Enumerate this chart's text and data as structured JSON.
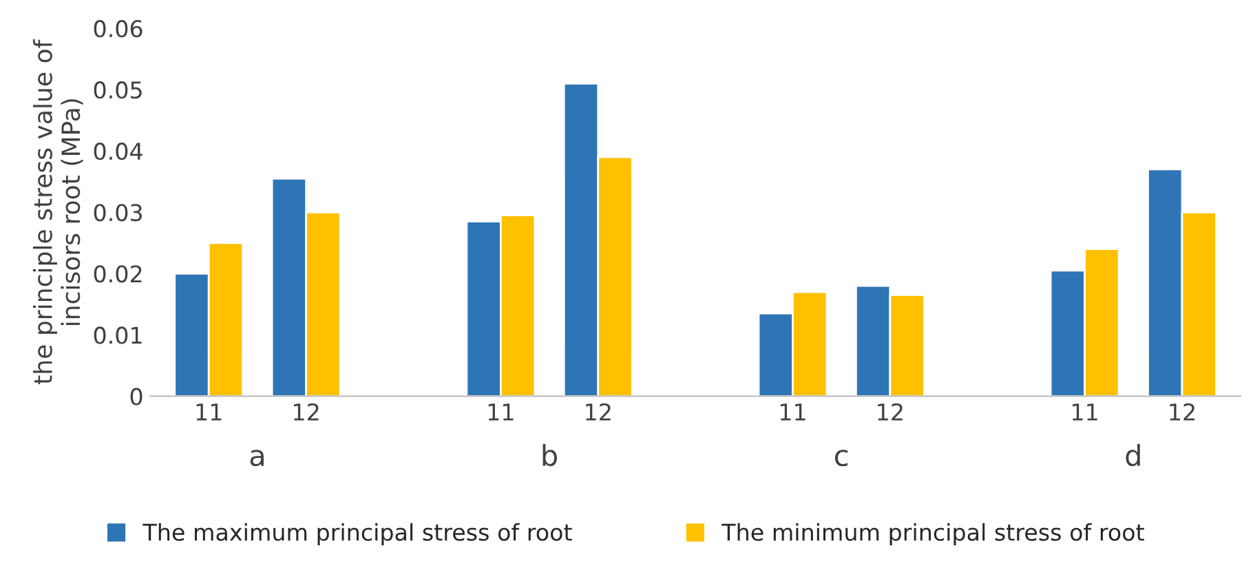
{
  "chart_data": {
    "type": "bar",
    "ylabel": "the principle stress value of incisors root (MPa)",
    "categories": [
      "11",
      "12",
      null,
      "11",
      "12",
      null,
      "11",
      "12",
      null,
      "11",
      "12"
    ],
    "series": [
      {
        "name": "The maximum principal stress of root",
        "color": "#2e75b6",
        "values": [
          0.02,
          0.0355,
          null,
          0.0285,
          0.051,
          null,
          0.0135,
          0.018,
          null,
          0.0205,
          0.037
        ]
      },
      {
        "name": "The minimum principal stress of root",
        "color": "#ffc000",
        "values": [
          0.025,
          0.03,
          null,
          0.0295,
          0.039,
          null,
          0.017,
          0.0165,
          null,
          0.024,
          0.03
        ]
      }
    ],
    "annotations": [
      "a",
      "b",
      "c",
      "d"
    ],
    "ylim": [
      0,
      0.06
    ],
    "yticks": [
      0,
      0.01,
      0.02,
      0.03,
      0.04,
      0.05,
      0.06
    ],
    "grid": false,
    "legend": "bottom"
  }
}
